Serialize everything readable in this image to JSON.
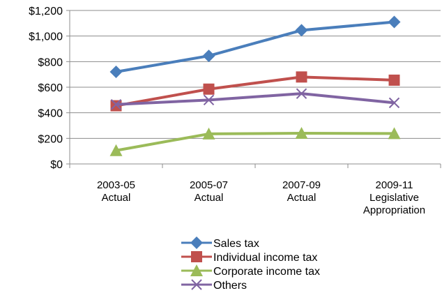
{
  "chart_data": {
    "type": "line",
    "categories": [
      "2003-05 Actual",
      "2005-07 Actual",
      "2007-09 Actual",
      "2009-11 Legislative Appropriation"
    ],
    "category_lines": [
      [
        "2003-05",
        "Actual"
      ],
      [
        "2005-07",
        "Actual"
      ],
      [
        "2007-09",
        "Actual"
      ],
      [
        "2009-11",
        "Legislative",
        "Appropriation"
      ]
    ],
    "ylim": [
      0,
      1200
    ],
    "ytick_step": 200,
    "ytick_labels": [
      "$0",
      "$200",
      "$400",
      "$600",
      "$800",
      "$1,000",
      "$1,200"
    ],
    "grid": true,
    "legend_position": "bottom",
    "series": [
      {
        "name": "Sales tax",
        "values": [
          720,
          845,
          1045,
          1110
        ],
        "color": "#4a7ebb",
        "marker": "diamond"
      },
      {
        "name": "Individual income tax",
        "values": [
          455,
          585,
          680,
          655
        ],
        "color": "#c0504d",
        "marker": "square"
      },
      {
        "name": "Corporate income tax",
        "values": [
          105,
          235,
          240,
          238
        ],
        "color": "#9bbb59",
        "marker": "triangle"
      },
      {
        "name": "Others",
        "values": [
          465,
          500,
          550,
          478
        ],
        "color": "#8064a2",
        "marker": "x"
      }
    ]
  }
}
